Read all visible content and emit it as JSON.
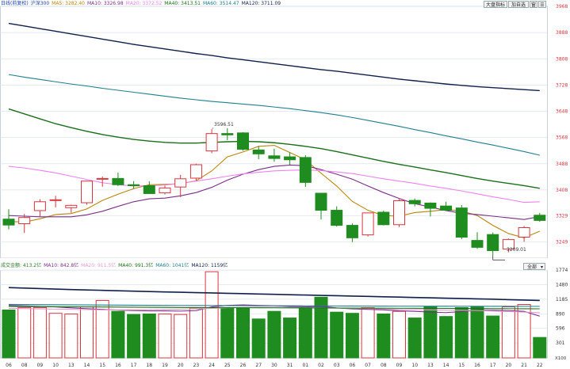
{
  "colors": {
    "up": "#d9363e",
    "down": "#1e8c1e",
    "bg_grid": "#dbe3ec",
    "ma5": "#b8860b",
    "ma10": "#7a2e86",
    "ma20": "#ee82ee",
    "ma40": "#1a6f1a",
    "ma60": "#1e7f8f",
    "ma120": "#10204a",
    "vma5": "#ee82ee",
    "vma10": "#7a2e86",
    "vma20": "#e39acb",
    "vma40": "#1a6f1a",
    "vma60": "#1e7f8f",
    "vma120": "#10204a"
  },
  "toolbar": {
    "btn1": "大盘指标",
    "btn2": "加自选",
    "btn3": "窗",
    "btn4": "☰"
  },
  "main_header": {
    "period": "日线(前复权)",
    "symbol": "沪深300",
    "ma5": "MA5: 3282.40",
    "ma10": "MA10: 3326.98",
    "ma20": "MA20: 3372.52",
    "ma40": "MA40: 3413.51",
    "ma60": "MA60: 3514.47",
    "ma120": "MA120: 3711.09"
  },
  "vol_header": {
    "title": "成交金额: 413.2亿",
    "ma10": "MA10: 842.8亿",
    "ma20": "MA20: 911.5亿",
    "ma40": "MA40: 991.3亿",
    "ma60": "MA60: 1041亿",
    "ma120": "MA120: 1159亿"
  },
  "vol_dropdown": {
    "value": "全部"
  },
  "annotations": {
    "high": "3596.51",
    "low": "3209.01"
  },
  "chart_data": {
    "type": "candlestick",
    "price_axis": {
      "ylim": [
        3200,
        3968
      ],
      "ticks": [
        3968,
        3888,
        3808,
        3728,
        3648,
        3568,
        3488,
        3408,
        3329,
        3249
      ]
    },
    "volume_axis": {
      "ylim": [
        0,
        1774
      ],
      "ticks": [
        1774,
        1480,
        1185,
        890,
        596,
        301
      ],
      "unit_label": "X100"
    },
    "x_labels": [
      "06",
      "08",
      "09",
      "10",
      "13",
      "14",
      "15",
      "16",
      "17",
      "18",
      "19",
      "20",
      "23",
      "24",
      "25",
      "26",
      "27",
      "30",
      "31",
      "01",
      "02",
      "03",
      "06",
      "07",
      "08",
      "09",
      "10",
      "13",
      "14",
      "15",
      "16",
      "17",
      "20",
      "21",
      "22"
    ],
    "candles": [
      {
        "o": 3319,
        "h": 3349,
        "l": 3288,
        "c": 3301
      },
      {
        "o": 3305,
        "h": 3335,
        "l": 3277,
        "c": 3324
      },
      {
        "o": 3345,
        "h": 3380,
        "l": 3327,
        "c": 3372
      },
      {
        "o": 3376,
        "h": 3390,
        "l": 3355,
        "c": 3378
      },
      {
        "o": 3354,
        "h": 3363,
        "l": 3338,
        "c": 3361
      },
      {
        "o": 3369,
        "h": 3436,
        "l": 3363,
        "c": 3435
      },
      {
        "o": 3442,
        "h": 3449,
        "l": 3418,
        "c": 3443
      },
      {
        "o": 3443,
        "h": 3461,
        "l": 3420,
        "c": 3424
      },
      {
        "o": 3424,
        "h": 3435,
        "l": 3412,
        "c": 3421
      },
      {
        "o": 3421,
        "h": 3434,
        "l": 3398,
        "c": 3397
      },
      {
        "o": 3399,
        "h": 3421,
        "l": 3394,
        "c": 3414
      },
      {
        "o": 3417,
        "h": 3454,
        "l": 3386,
        "c": 3442
      },
      {
        "o": 3444,
        "h": 3488,
        "l": 3436,
        "c": 3485
      },
      {
        "o": 3527,
        "h": 3594,
        "l": 3520,
        "c": 3580
      },
      {
        "o": 3580,
        "h": 3596,
        "l": 3560,
        "c": 3576
      },
      {
        "o": 3582,
        "h": 3584,
        "l": 3528,
        "c": 3532
      },
      {
        "o": 3530,
        "h": 3542,
        "l": 3502,
        "c": 3518
      },
      {
        "o": 3512,
        "h": 3534,
        "l": 3494,
        "c": 3504
      },
      {
        "o": 3509,
        "h": 3523,
        "l": 3485,
        "c": 3500
      },
      {
        "o": 3507,
        "h": 3514,
        "l": 3417,
        "c": 3431
      },
      {
        "o": 3398,
        "h": 3398,
        "l": 3318,
        "c": 3346
      },
      {
        "o": 3346,
        "h": 3358,
        "l": 3296,
        "c": 3300
      },
      {
        "o": 3300,
        "h": 3306,
        "l": 3249,
        "c": 3262
      },
      {
        "o": 3271,
        "h": 3339,
        "l": 3266,
        "c": 3338
      },
      {
        "o": 3340,
        "h": 3345,
        "l": 3300,
        "c": 3302
      },
      {
        "o": 3302,
        "h": 3380,
        "l": 3295,
        "c": 3375
      },
      {
        "o": 3376,
        "h": 3382,
        "l": 3358,
        "c": 3366
      },
      {
        "o": 3368,
        "h": 3370,
        "l": 3327,
        "c": 3352
      },
      {
        "o": 3359,
        "h": 3372,
        "l": 3345,
        "c": 3346
      },
      {
        "o": 3353,
        "h": 3362,
        "l": 3258,
        "c": 3264
      },
      {
        "o": 3254,
        "h": 3279,
        "l": 3228,
        "c": 3233
      },
      {
        "o": 3272,
        "h": 3278,
        "l": 3209,
        "c": 3223
      },
      {
        "o": 3228,
        "h": 3260,
        "l": 3218,
        "c": 3257
      },
      {
        "o": 3264,
        "h": 3298,
        "l": 3250,
        "c": 3293
      },
      {
        "o": 3331,
        "h": 3338,
        "l": 3311,
        "c": 3315
      }
    ],
    "ma_lines": [
      {
        "name": "MA5",
        "values": [
          3312,
          3310,
          3320,
          3333,
          3336,
          3350,
          3376,
          3395,
          3412,
          3424,
          3425,
          3427,
          3436,
          3466,
          3509,
          3524,
          3541,
          3544,
          3522,
          3500,
          3459,
          3420,
          3373,
          3346,
          3330,
          3328,
          3339,
          3343,
          3348,
          3344,
          3330,
          3300,
          3275,
          3262,
          3282
        ]
      },
      {
        "name": "MA10",
        "values": [
          3330,
          3328,
          3326,
          3326,
          3326,
          3332,
          3343,
          3358,
          3372,
          3381,
          3383,
          3390,
          3400,
          3416,
          3438,
          3456,
          3470,
          3480,
          3484,
          3482,
          3470,
          3456,
          3441,
          3420,
          3400,
          3382,
          3366,
          3356,
          3345,
          3337,
          3333,
          3328,
          3323,
          3318,
          3327
        ]
      },
      {
        "name": "MA20",
        "values": [
          3480,
          3475,
          3468,
          3460,
          3450,
          3440,
          3430,
          3424,
          3420,
          3421,
          3423,
          3428,
          3435,
          3442,
          3450,
          3457,
          3462,
          3466,
          3468,
          3469,
          3467,
          3463,
          3458,
          3450,
          3442,
          3435,
          3428,
          3420,
          3413,
          3405,
          3396,
          3387,
          3379,
          3370,
          3372
        ]
      },
      {
        "name": "MA40",
        "values": [
          3655,
          3640,
          3625,
          3610,
          3598,
          3587,
          3577,
          3569,
          3562,
          3557,
          3553,
          3551,
          3551,
          3553,
          3555,
          3556,
          3555,
          3552,
          3547,
          3541,
          3534,
          3525,
          3515,
          3505,
          3495,
          3486,
          3478,
          3469,
          3461,
          3452,
          3443,
          3435,
          3428,
          3421,
          3413
        ]
      },
      {
        "name": "MA60",
        "values": [
          3760,
          3752,
          3745,
          3738,
          3731,
          3725,
          3718,
          3712,
          3706,
          3700,
          3694,
          3688,
          3683,
          3678,
          3674,
          3670,
          3666,
          3661,
          3656,
          3650,
          3644,
          3637,
          3629,
          3620,
          3611,
          3602,
          3592,
          3583,
          3573,
          3564,
          3554,
          3545,
          3535,
          3525,
          3514
        ]
      },
      {
        "name": "MA120",
        "values": [
          3916,
          3908,
          3900,
          3892,
          3884,
          3876,
          3868,
          3860,
          3852,
          3845,
          3838,
          3831,
          3824,
          3818,
          3811,
          3805,
          3799,
          3793,
          3787,
          3781,
          3775,
          3770,
          3764,
          3758,
          3752,
          3746,
          3741,
          3736,
          3731,
          3727,
          3723,
          3720,
          3717,
          3714,
          3711
        ]
      }
    ],
    "volumes": [
      967,
      1016,
      1016,
      900,
      887,
      1030,
      1160,
      940,
      877,
      887,
      887,
      877,
      1010,
      1740,
      1016,
      1016,
      786,
      940,
      806,
      1016,
      1225,
      924,
      900,
      1016,
      887,
      940,
      806,
      1030,
      836,
      1016,
      1037,
      846,
      1030,
      1079,
      413
    ],
    "vol_ma_lines": [
      {
        "name": "MA10",
        "values": [
          1060,
          1050,
          1040,
          1030,
          1010,
          995,
          980,
          965,
          955,
          950,
          950,
          945,
          955,
          1030,
          1060,
          1070,
          1060,
          1055,
          1040,
          1030,
          1040,
          1010,
          990,
          980,
          970,
          950,
          940,
          925,
          915,
          935,
          960,
          960,
          955,
          940,
          843
        ]
      },
      {
        "name": "MA20",
        "values": [
          1000,
          995,
          990,
          985,
          980,
          975,
          970,
          970,
          972,
          975,
          980,
          985,
          990,
          1000,
          1010,
          1020,
          1025,
          1025,
          1020,
          1015,
          1010,
          1005,
          1000,
          995,
          990,
          980,
          975,
          970,
          965,
          960,
          955,
          945,
          935,
          925,
          912
        ]
      },
      {
        "name": "MA40",
        "values": [
          1040,
          1038,
          1036,
          1034,
          1032,
          1030,
          1028,
          1026,
          1024,
          1022,
          1020,
          1018,
          1016,
          1015,
          1014,
          1013,
          1012,
          1011,
          1010,
          1009,
          1008,
          1007,
          1006,
          1005,
          1004,
          1003,
          1002,
          1001,
          1000,
          998,
          996,
          994,
          993,
          992,
          991
        ]
      },
      {
        "name": "MA60",
        "values": [
          1080,
          1078,
          1076,
          1074,
          1072,
          1070,
          1068,
          1066,
          1064,
          1062,
          1060,
          1059,
          1058,
          1057,
          1056,
          1055,
          1054,
          1053,
          1052,
          1051,
          1050,
          1049,
          1048,
          1047,
          1046,
          1045,
          1045,
          1044,
          1044,
          1043,
          1043,
          1042,
          1042,
          1041,
          1041
        ]
      },
      {
        "name": "MA120",
        "values": [
          1420,
          1410,
          1400,
          1390,
          1380,
          1372,
          1364,
          1356,
          1348,
          1340,
          1332,
          1325,
          1318,
          1311,
          1304,
          1297,
          1290,
          1283,
          1276,
          1269,
          1262,
          1255,
          1248,
          1241,
          1234,
          1227,
          1220,
          1213,
          1206,
          1199,
          1192,
          1185,
          1176,
          1167,
          1159
        ]
      }
    ]
  }
}
